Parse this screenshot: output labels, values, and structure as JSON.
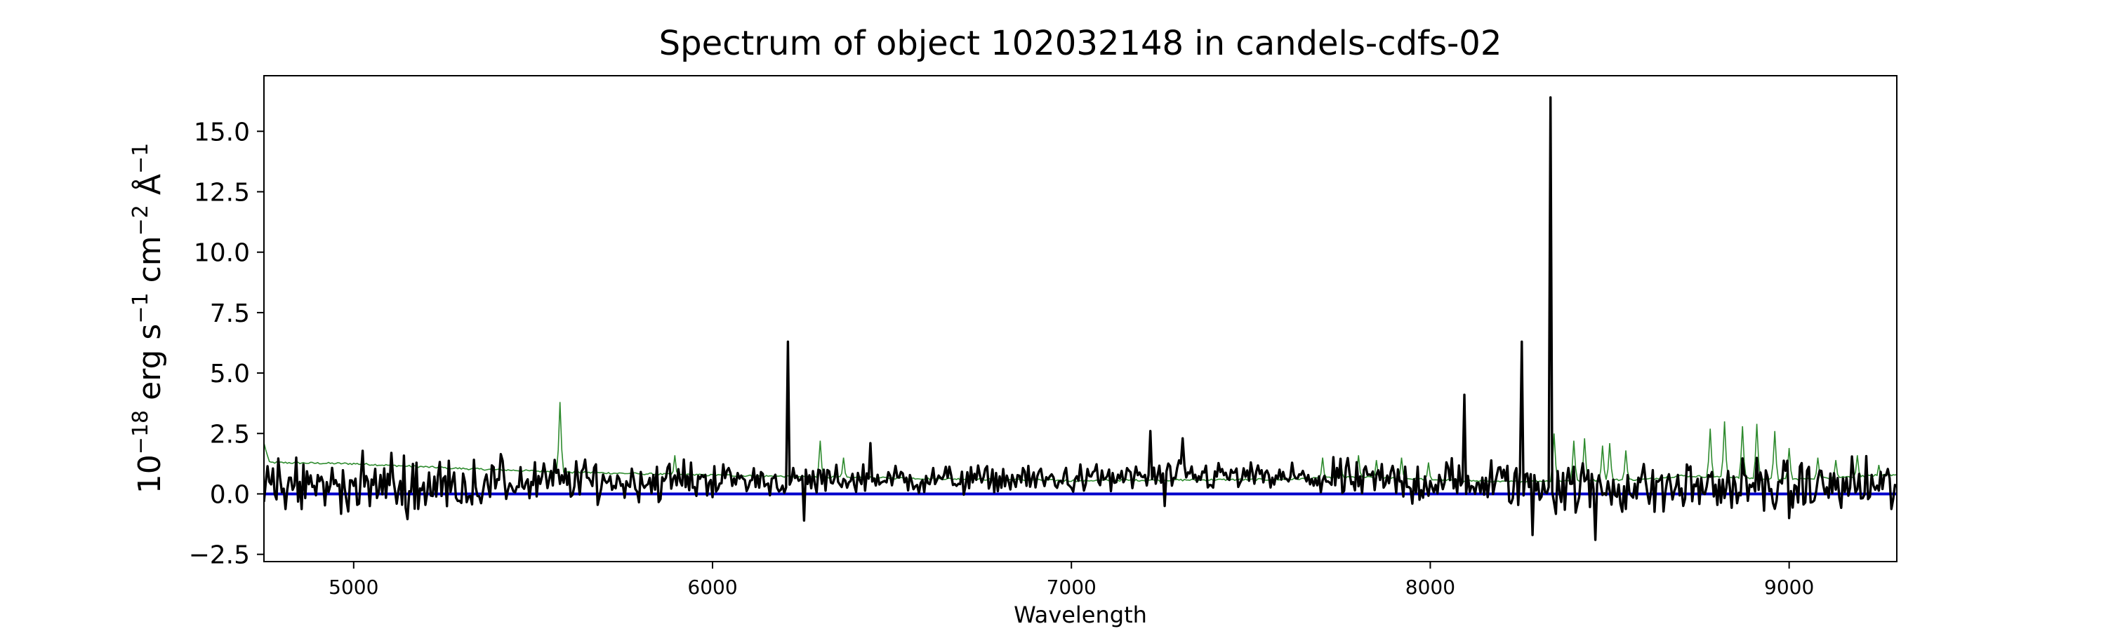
{
  "chart_data": {
    "type": "line",
    "title": "Spectrum of object 102032148 in candels-cdfs-02",
    "xlabel": "Wavelength",
    "ylabel_parts": {
      "base": "10",
      "exp1": "−18",
      "erg": " erg s",
      "exp2": "−1",
      "cm": " cm",
      "exp3": "−2",
      "ang": " Å",
      "exp4": "−1"
    },
    "xlim": [
      4750,
      9300
    ],
    "ylim": [
      -2.8,
      17.3
    ],
    "xticks": [
      5000,
      6000,
      7000,
      8000,
      9000
    ],
    "yticks": [
      -2.5,
      0.0,
      2.5,
      5.0,
      7.5,
      10.0,
      12.5,
      15.0
    ],
    "grid": false,
    "colors": {
      "flux": "#000000",
      "error": "#2e8b2e",
      "zero": "#0000cc"
    },
    "series": [
      {
        "key": "flux",
        "x_start": 4750,
        "x_step": 5,
        "baseline": [
          [
            4750,
            0.3
          ],
          [
            5000,
            0.35
          ],
          [
            5200,
            0.3
          ],
          [
            5400,
            0.45
          ],
          [
            5600,
            0.55
          ],
          [
            5800,
            0.5
          ],
          [
            6000,
            0.6
          ],
          [
            6200,
            0.55
          ],
          [
            6500,
            0.6
          ],
          [
            7000,
            0.6
          ],
          [
            7200,
            0.7
          ],
          [
            7400,
            0.75
          ],
          [
            7600,
            0.65
          ],
          [
            7800,
            0.55
          ],
          [
            8000,
            0.5
          ],
          [
            8200,
            0.45
          ],
          [
            8400,
            0.3
          ],
          [
            8600,
            0.25
          ],
          [
            8800,
            0.3
          ],
          [
            9000,
            0.3
          ],
          [
            9300,
            0.3
          ]
        ],
        "noise": [
          [
            4750,
            0.55
          ],
          [
            5200,
            0.55
          ],
          [
            5600,
            0.45
          ],
          [
            6000,
            0.35
          ],
          [
            6500,
            0.3
          ],
          [
            7000,
            0.28
          ],
          [
            7500,
            0.3
          ],
          [
            7900,
            0.45
          ],
          [
            8100,
            0.5
          ],
          [
            8400,
            0.55
          ],
          [
            8800,
            0.55
          ],
          [
            9300,
            0.5
          ]
        ],
        "spikes": [
          [
            4840,
            1.5
          ],
          [
            5105,
            1.7
          ],
          [
            6210,
            6.3
          ],
          [
            6255,
            -1.1
          ],
          [
            6440,
            2.1
          ],
          [
            7220,
            2.6
          ],
          [
            7260,
            -0.5
          ],
          [
            7310,
            2.3
          ],
          [
            8095,
            4.1
          ],
          [
            8255,
            6.3
          ],
          [
            8285,
            -1.7
          ],
          [
            8335,
            16.4
          ],
          [
            8460,
            -1.9
          ],
          [
            9000,
            -1.0
          ]
        ]
      },
      {
        "key": "error",
        "x_start": 4750,
        "x_step": 5,
        "baseline": [
          [
            4750,
            2.1
          ],
          [
            4765,
            1.3
          ],
          [
            5000,
            1.25
          ],
          [
            5300,
            1.05
          ],
          [
            5600,
            0.9
          ],
          [
            5900,
            0.8
          ],
          [
            6300,
            0.7
          ],
          [
            7000,
            0.55
          ],
          [
            7600,
            0.6
          ],
          [
            7800,
            0.7
          ],
          [
            8000,
            0.6
          ],
          [
            8200,
            0.5
          ],
          [
            8400,
            0.55
          ],
          [
            8600,
            0.6
          ],
          [
            8700,
            0.75
          ],
          [
            8800,
            0.7
          ],
          [
            9000,
            0.6
          ],
          [
            9300,
            0.8
          ]
        ],
        "spikes": [
          [
            5575,
            3.8
          ],
          [
            5895,
            1.6
          ],
          [
            6300,
            2.2
          ],
          [
            6365,
            1.5
          ],
          [
            7700,
            1.5
          ],
          [
            7750,
            1.5
          ],
          [
            7800,
            1.6
          ],
          [
            7850,
            1.4
          ],
          [
            7920,
            1.5
          ],
          [
            7995,
            1.3
          ],
          [
            8345,
            2.5
          ],
          [
            8400,
            2.2
          ],
          [
            8430,
            2.3
          ],
          [
            8480,
            2.0
          ],
          [
            8500,
            2.1
          ],
          [
            8545,
            1.8
          ],
          [
            8780,
            2.7
          ],
          [
            8820,
            3.0
          ],
          [
            8870,
            2.8
          ],
          [
            8910,
            2.9
          ],
          [
            8960,
            2.6
          ],
          [
            9000,
            1.9
          ],
          [
            9080,
            1.5
          ],
          [
            9130,
            1.4
          ],
          [
            9190,
            1.6
          ],
          [
            9250,
            1.2
          ]
        ]
      },
      {
        "key": "zero",
        "values": [
          [
            4750,
            0.0
          ],
          [
            9300,
            0.0
          ]
        ]
      }
    ]
  }
}
